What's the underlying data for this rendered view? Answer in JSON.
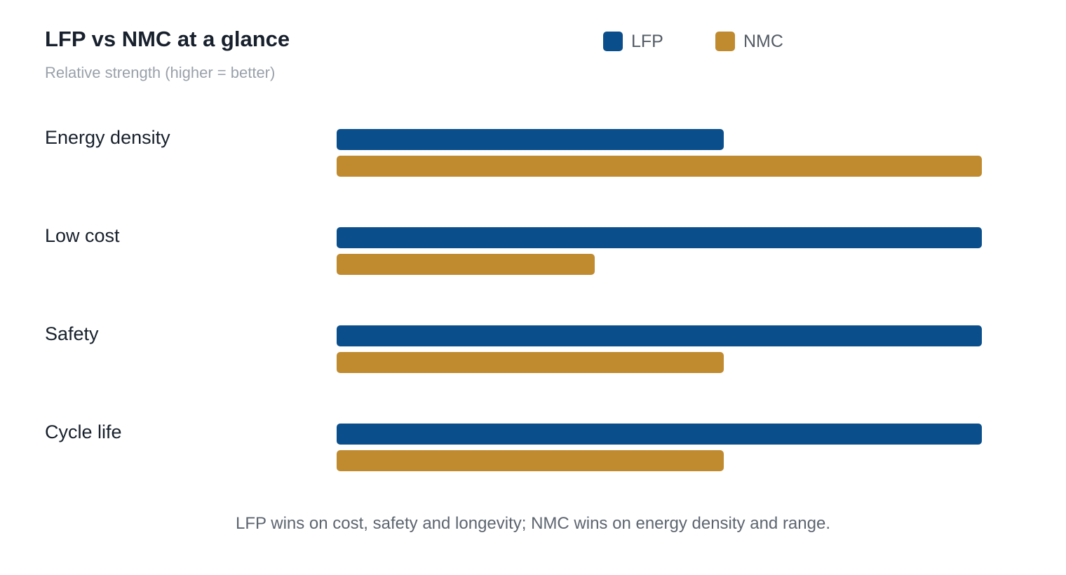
{
  "chart_data": {
    "type": "bar",
    "orientation": "horizontal",
    "title": "LFP vs NMC at a glance",
    "subtitle": "Relative strength (higher = better)",
    "categories": [
      "Energy density",
      "Low cost",
      "Safety",
      "Cycle life"
    ],
    "series": [
      {
        "name": "LFP",
        "color": "#0a4f8c",
        "values": [
          3,
          5,
          5,
          5
        ]
      },
      {
        "name": "NMC",
        "color": "#c08a2f",
        "values": [
          5,
          2,
          3,
          3
        ]
      }
    ],
    "xlim": [
      0,
      5
    ],
    "grid": false,
    "legend_position": "top-right",
    "footnote": "LFP wins on cost, safety and longevity; NMC wins on energy density and range."
  }
}
